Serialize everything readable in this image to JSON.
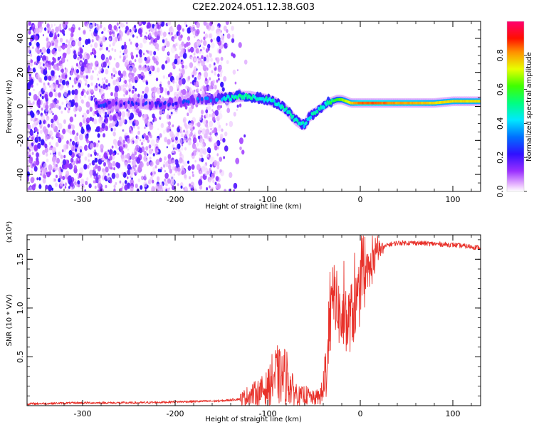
{
  "title": "C2E2.2024.051.12.38.G03",
  "chart_data": [
    {
      "type": "heatmap",
      "xlabel": "Height of straight line (km)",
      "ylabel": "Frequency (Hz)",
      "xlim": [
        -360,
        130
      ],
      "ylim": [
        -50,
        50
      ],
      "x_ticks": [
        -300,
        -200,
        -100,
        0,
        100
      ],
      "y_ticks": [
        -40,
        -20,
        0,
        20,
        40
      ],
      "colorbar": {
        "label": "Normalized spectral amplitude",
        "range": [
          0,
          1
        ],
        "ticks": [
          0.0,
          0.2,
          0.4,
          0.6,
          0.8
        ],
        "colors": [
          "#ffffff",
          "#ff00ff",
          "#7f00ff",
          "#0000ff",
          "#00ffff",
          "#00ff00",
          "#ffff00",
          "#ff8000",
          "#ff0000",
          "#ff0066"
        ]
      },
      "ridge": {
        "x": [
          -285,
          -240,
          -225,
          -200,
          -180,
          -160,
          -150,
          -140,
          -130,
          -120,
          -110,
          -100,
          -95,
          -90,
          -85,
          -80,
          -75,
          -70,
          -65,
          -60,
          -55,
          -50,
          -45,
          -40,
          -35,
          -30,
          -25,
          -20,
          -15,
          -10,
          -5,
          0,
          20,
          40,
          60,
          80,
          100,
          120,
          130
        ],
        "y": [
          1,
          2,
          1,
          2,
          4,
          4,
          5,
          5,
          6,
          6,
          5,
          4,
          3,
          2,
          0,
          -2,
          -5,
          -8,
          -10,
          -11,
          -6,
          -4,
          -2,
          0,
          2,
          3,
          4,
          4,
          3,
          2,
          2,
          2,
          2,
          2,
          2,
          2,
          3,
          3,
          3
        ],
        "amplitude": [
          0.25,
          0.2,
          0.25,
          0.25,
          0.3,
          0.35,
          0.4,
          0.45,
          0.5,
          0.5,
          0.45,
          0.45,
          0.45,
          0.45,
          0.45,
          0.45,
          0.45,
          0.45,
          0.45,
          0.45,
          0.45,
          0.45,
          0.45,
          0.45,
          0.5,
          0.55,
          0.6,
          0.65,
          0.7,
          0.75,
          0.8,
          0.85,
          0.85,
          0.8,
          0.8,
          0.75,
          0.75,
          0.75,
          0.75
        ]
      },
      "noise_region": {
        "x_start": -360,
        "x_end": -150,
        "taper_end": -120
      }
    },
    {
      "type": "line",
      "xlabel": "Height of straight line (km)",
      "ylabel": "SNR (10 * V/V)",
      "yscale_label": "(x10⁴)",
      "xlim": [
        -360,
        130
      ],
      "ylim": [
        0,
        1.75
      ],
      "x_ticks": [
        -300,
        -200,
        -100,
        0,
        100
      ],
      "y_ticks": [
        0.5,
        1.0,
        1.5
      ],
      "y_tick_labels": [
        "0.5",
        "1.0",
        "1.5"
      ],
      "series": [
        {
          "color": "#e8312a",
          "x": [
            -360,
            -300,
            -240,
            -200,
            -150,
            -130,
            -120,
            -110,
            -100,
            -95,
            -90,
            -85,
            -80,
            -75,
            -70,
            -65,
            -60,
            -55,
            -50,
            -45,
            -40,
            -38,
            -35,
            -32,
            -30,
            -28,
            -25,
            -22,
            -20,
            -15,
            -10,
            -5,
            0,
            5,
            10,
            15,
            20,
            25,
            30,
            40,
            60,
            80,
            100,
            110,
            120,
            130
          ],
          "y": [
            0.02,
            0.03,
            0.03,
            0.04,
            0.05,
            0.07,
            0.12,
            0.15,
            0.2,
            0.3,
            0.35,
            0.3,
            0.35,
            0.2,
            0.15,
            0.1,
            0.12,
            0.1,
            0.08,
            0.1,
            0.15,
            0.35,
            0.6,
            0.9,
            1.1,
            1.2,
            1.05,
            0.95,
            0.9,
            0.85,
            0.95,
            1.05,
            1.2,
            1.3,
            1.4,
            1.5,
            1.6,
            1.62,
            1.65,
            1.67,
            1.67,
            1.66,
            1.65,
            1.64,
            1.63,
            1.62
          ]
        }
      ]
    }
  ]
}
